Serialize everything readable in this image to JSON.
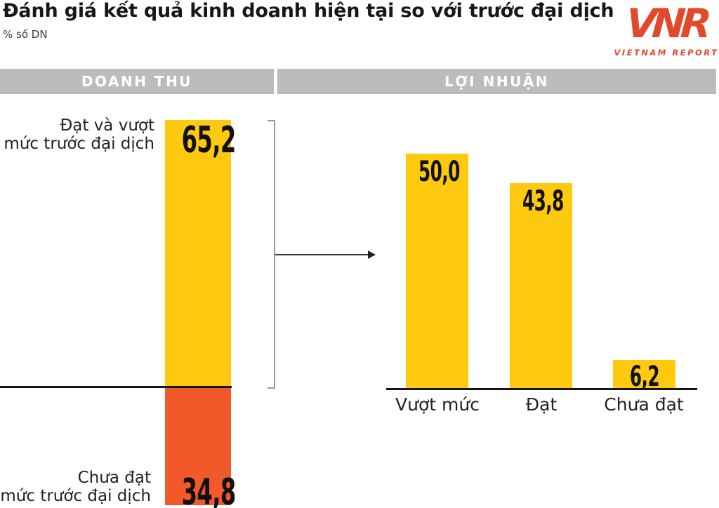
{
  "title": "Đánh giá kết quả kinh doanh hiện tại so với trước đại dịch",
  "unit_label": "% số DN",
  "logo": {
    "acronym": "VNR",
    "name": "VIETNAM REPORT",
    "color": "#E2492B"
  },
  "headers": {
    "revenue": "DOANH THU",
    "profit": "LỢI NHUẬN"
  },
  "revenue_chart": {
    "positive_label_line1": "Đạt và vượt",
    "positive_label_line2": "mức trước đại dịch",
    "positive_value": "65,2",
    "negative_label_line1": "Chưa đạt",
    "negative_label_line2": "mức trước đại dịch",
    "negative_value": "34,8"
  },
  "profit_chart": {
    "bars": [
      {
        "label": "Vượt mức",
        "value": "50,0"
      },
      {
        "label": "Đạt",
        "value": "43,8"
      },
      {
        "label": "Chưa đạt",
        "value": "6,2"
      }
    ]
  },
  "colors": {
    "bar_yellow": "#FFC90F",
    "bar_orange": "#F1592B",
    "header_gray": "#BBBCBD",
    "logo_red": "#E2492B"
  },
  "chart_data": [
    {
      "type": "bar",
      "section": "DOANH THU",
      "orientation": "diverging-vertical",
      "categories": [
        "Đạt và vượt mức trước đại dịch",
        "Chưa đạt mức trước đại dịch"
      ],
      "values": [
        65.2,
        34.8
      ],
      "bar_colors": [
        "#FFC90F",
        "#F1592B"
      ],
      "unit": "% số DN",
      "note": "first bar rises above baseline, second drops below baseline"
    },
    {
      "type": "bar",
      "section": "LỢI NHUẬN",
      "categories": [
        "Vượt mức",
        "Đạt",
        "Chưa đạt"
      ],
      "values": [
        50.0,
        43.8,
        6.2
      ],
      "bar_colors": [
        "#FFC90F",
        "#FFC90F",
        "#FFC90F"
      ],
      "unit": "% số DN",
      "ylim": [
        0,
        55
      ],
      "grid": false,
      "legend": false
    }
  ]
}
